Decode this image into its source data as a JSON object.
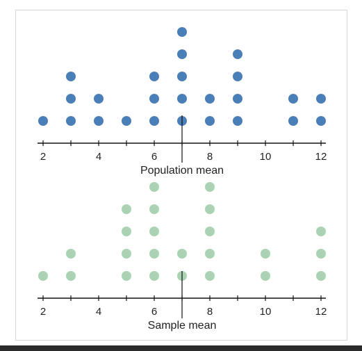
{
  "chart_data": [
    {
      "type": "scatter",
      "subtype": "dot-plot",
      "x_range": [
        2,
        12
      ],
      "tick_labels": [
        "2",
        "4",
        "6",
        "8",
        "10",
        "12"
      ],
      "ticks": [
        2,
        3,
        4,
        5,
        6,
        7,
        8,
        9,
        10,
        11,
        12
      ],
      "counts": {
        "2": 1,
        "3": 3,
        "4": 2,
        "5": 1,
        "6": 3,
        "7": 5,
        "8": 2,
        "9": 4,
        "10": 0,
        "11": 2,
        "12": 2
      },
      "mean_line_at": 7,
      "mean_label": "Population mean",
      "color": "#4a7fb8"
    },
    {
      "type": "scatter",
      "subtype": "dot-plot",
      "x_range": [
        2,
        12
      ],
      "tick_labels": [
        "2",
        "4",
        "6",
        "8",
        "10",
        "12"
      ],
      "ticks": [
        2,
        3,
        4,
        5,
        6,
        7,
        8,
        9,
        10,
        11,
        12
      ],
      "counts": {
        "2": 1,
        "3": 2,
        "4": 0,
        "5": 4,
        "6": 5,
        "7": 2,
        "8": 5,
        "9": 0,
        "10": 2,
        "11": 0,
        "12": 3
      },
      "mean_line_at": 7,
      "mean_label": "Sample mean",
      "color": "#a9d3b3"
    }
  ]
}
